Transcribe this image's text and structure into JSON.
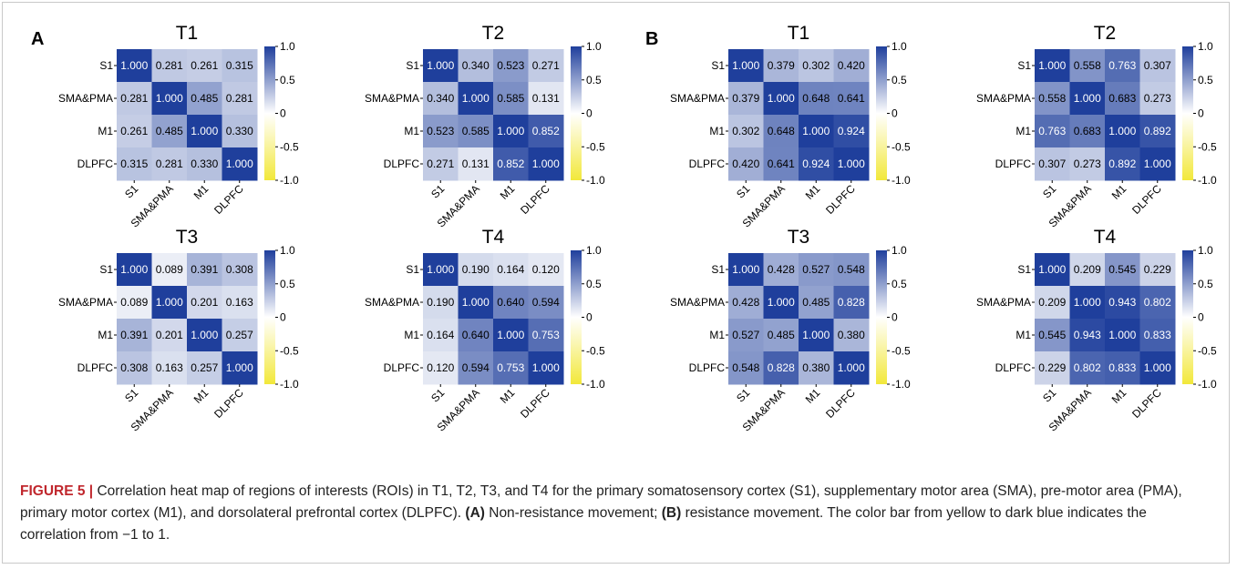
{
  "panels": [
    {
      "letter": "A"
    },
    {
      "letter": "B"
    }
  ],
  "colors": {
    "negative": "#f2e83a",
    "neutral": "#ffffff",
    "positive": "#1f3f9c"
  },
  "caption": {
    "label": "FIGURE 5 |",
    "part1": " Correlation heat map of regions of interests (ROIs) in T1, T2, T3, and T4 for the primary somatosensory cortex (S1), supplementary motor area (SMA), pre-motor area (PMA), primary motor cortex (M1), and dorsolateral prefrontal cortex (DLPFC). ",
    "a_label": "(A)",
    "part2": " Non-resistance movement; ",
    "b_label": "(B)",
    "part3": " resistance movement. The color bar from yellow to dark blue indicates the correlation from −1 to 1."
  },
  "chart_data": [
    {
      "type": "heatmap",
      "panel": "A",
      "title": "T1",
      "rows": [
        "S1",
        "SMA&PMA",
        "M1",
        "DLPFC"
      ],
      "cols": [
        "S1",
        "SMA&PMA",
        "M1",
        "DLPFC"
      ],
      "values": [
        [
          "1.000",
          "0.281",
          "0.261",
          "0.315"
        ],
        [
          "0.281",
          "1.000",
          "0.485",
          "0.281"
        ],
        [
          "0.261",
          "0.485",
          "1.000",
          "0.330"
        ],
        [
          "0.315",
          "0.281",
          "0.330",
          "1.000"
        ]
      ],
      "colorbar_ticks": [
        "1.0",
        "0.5",
        "0",
        "-0.5",
        "-1.0"
      ],
      "vmin": -1,
      "vmax": 1
    },
    {
      "type": "heatmap",
      "panel": "A",
      "title": "T2",
      "rows": [
        "S1",
        "SMA&PMA",
        "M1",
        "DLPFC"
      ],
      "cols": [
        "S1",
        "SMA&PMA",
        "M1",
        "DLPFC"
      ],
      "values": [
        [
          "1.000",
          "0.340",
          "0.523",
          "0.271"
        ],
        [
          "0.340",
          "1.000",
          "0.585",
          "0.131"
        ],
        [
          "0.523",
          "0.585",
          "1.000",
          "0.852"
        ],
        [
          "0.271",
          "0.131",
          "0.852",
          "1.000"
        ]
      ],
      "colorbar_ticks": [
        "1.0",
        "0.5",
        "0",
        "-0.5",
        "-1.0"
      ],
      "vmin": -1,
      "vmax": 1
    },
    {
      "type": "heatmap",
      "panel": "A",
      "title": "T3",
      "rows": [
        "S1",
        "SMA&PMA",
        "M1",
        "DLPFC"
      ],
      "cols": [
        "S1",
        "SMA&PMA",
        "M1",
        "DLPFC"
      ],
      "values": [
        [
          "1.000",
          "0.089",
          "0.391",
          "0.308"
        ],
        [
          "0.089",
          "1.000",
          "0.201",
          "0.163"
        ],
        [
          "0.391",
          "0.201",
          "1.000",
          "0.257"
        ],
        [
          "0.308",
          "0.163",
          "0.257",
          "1.000"
        ]
      ],
      "colorbar_ticks": [
        "1.0",
        "0.5",
        "0",
        "-0.5",
        "-1.0"
      ],
      "vmin": -1,
      "vmax": 1
    },
    {
      "type": "heatmap",
      "panel": "A",
      "title": "T4",
      "rows": [
        "S1",
        "SMA&PMA",
        "M1",
        "DLPFC"
      ],
      "cols": [
        "S1",
        "SMA&PMA",
        "M1",
        "DLPFC"
      ],
      "values": [
        [
          "1.000",
          "0.190",
          "0.164",
          "0.120"
        ],
        [
          "0.190",
          "1.000",
          "0.640",
          "0.594"
        ],
        [
          "0.164",
          "0.640",
          "1.000",
          "0.753"
        ],
        [
          "0.120",
          "0.594",
          "0.753",
          "1.000"
        ]
      ],
      "colorbar_ticks": [
        "1.0",
        "0.5",
        "0",
        "-0.5",
        "-1.0"
      ],
      "vmin": -1,
      "vmax": 1
    },
    {
      "type": "heatmap",
      "panel": "B",
      "title": "T1",
      "rows": [
        "S1",
        "SMA&PMA",
        "M1",
        "DLPFC"
      ],
      "cols": [
        "S1",
        "SMA&PMA",
        "M1",
        "DLPFC"
      ],
      "values": [
        [
          "1.000",
          "0.379",
          "0.302",
          "0.420"
        ],
        [
          "0.379",
          "1.000",
          "0.648",
          "0.641"
        ],
        [
          "0.302",
          "0.648",
          "1.000",
          "0.924"
        ],
        [
          "0.420",
          "0.641",
          "0.924",
          "1.000"
        ]
      ],
      "colorbar_ticks": [
        "1.0",
        "0.5",
        "0",
        "-0.5",
        "-1.0"
      ],
      "vmin": -1,
      "vmax": 1
    },
    {
      "type": "heatmap",
      "panel": "B",
      "title": "T2",
      "rows": [
        "S1",
        "SMA&PMA",
        "M1",
        "DLPFC"
      ],
      "cols": [
        "S1",
        "SMA&PMA",
        "M1",
        "DLPFC"
      ],
      "values": [
        [
          "1.000",
          "0.558",
          "0.763",
          "0.307"
        ],
        [
          "0.558",
          "1.000",
          "0.683",
          "0.273"
        ],
        [
          "0.763",
          "0.683",
          "1.000",
          "0.892"
        ],
        [
          "0.307",
          "0.273",
          "0.892",
          "1.000"
        ]
      ],
      "colorbar_ticks": [
        "1.0",
        "0.5",
        "0",
        "-0.5",
        "-1.0"
      ],
      "vmin": -1,
      "vmax": 1
    },
    {
      "type": "heatmap",
      "panel": "B",
      "title": "T3",
      "rows": [
        "S1",
        "SMA&PMA",
        "M1",
        "DLPFC"
      ],
      "cols": [
        "S1",
        "SMA&PMA",
        "M1",
        "DLPFC"
      ],
      "values": [
        [
          "1.000",
          "0.428",
          "0.527",
          "0.548"
        ],
        [
          "0.428",
          "1.000",
          "0.485",
          "0.828"
        ],
        [
          "0.527",
          "0.485",
          "1.000",
          "0.380"
        ],
        [
          "0.548",
          "0.828",
          "0.380",
          "1.000"
        ]
      ],
      "colorbar_ticks": [
        "1.0",
        "0.5",
        "0",
        "-0.5",
        "-1.0"
      ],
      "vmin": -1,
      "vmax": 1
    },
    {
      "type": "heatmap",
      "panel": "B",
      "title": "T4",
      "rows": [
        "S1",
        "SMA&PMA",
        "M1",
        "DLPFC"
      ],
      "cols": [
        "S1",
        "SMA&PMA",
        "M1",
        "DLPFC"
      ],
      "values": [
        [
          "1.000",
          "0.209",
          "0.545",
          "0.229"
        ],
        [
          "0.209",
          "1.000",
          "0.943",
          "0.802"
        ],
        [
          "0.545",
          "0.943",
          "1.000",
          "0.833"
        ],
        [
          "0.229",
          "0.802",
          "0.833",
          "1.000"
        ]
      ],
      "colorbar_ticks": [
        "1.0",
        "0.5",
        "0",
        "-0.5",
        "-1.0"
      ],
      "vmin": -1,
      "vmax": 1
    }
  ]
}
